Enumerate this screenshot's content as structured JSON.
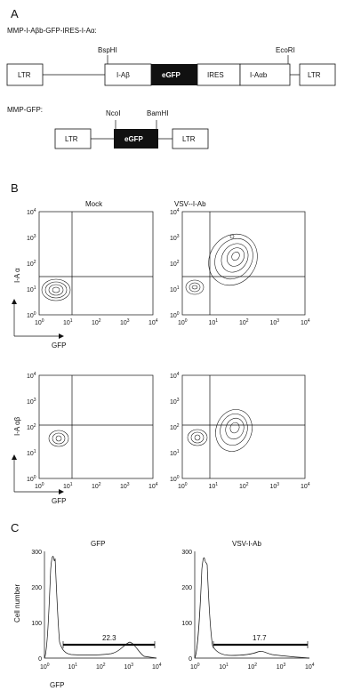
{
  "panel_a": {
    "letter": "A",
    "construct1": {
      "title": "MMP-I-Aβb-GFP-IRES-I-Aα:",
      "segments": [
        "LTR",
        "I-Aβ",
        "eGFP",
        "IRES",
        "I-Aαb",
        "LTR"
      ],
      "sites": [
        "BspHI",
        "EcoRI"
      ]
    },
    "construct2": {
      "title": "MMP-GFP:",
      "segments": [
        "LTR",
        "eGFP",
        "LTR"
      ],
      "sites": [
        "NcoI",
        "BamHI"
      ]
    }
  },
  "panel_b": {
    "letter": "B",
    "col_titles": [
      "Mock",
      "VSV--I-Ab"
    ],
    "row1_ylabel": "I-A α",
    "row2_ylabel": "I-A αβ",
    "xlabel": "GFP",
    "tick_base": "10",
    "tick_exps": [
      "0",
      "1",
      "2",
      "3",
      "4"
    ]
  },
  "panel_c": {
    "letter": "C",
    "titles": [
      "GFP",
      "VSV-I-Ab"
    ],
    "ylabel": "Cell number",
    "xlabel": "GFP",
    "y_ticks": [
      "0",
      "100",
      "200",
      "300"
    ],
    "gate_values": [
      "22.3",
      "17.7"
    ]
  },
  "chart_data": [
    {
      "type": "heatmap",
      "title": "Mock",
      "xlabel": "GFP",
      "ylabel": "I-A α",
      "xscale": "log",
      "yscale": "log",
      "xlim": [
        1,
        10000
      ],
      "ylim": [
        1,
        10000
      ]
    },
    {
      "type": "heatmap",
      "title": "VSV--I-Ab",
      "xlabel": "GFP",
      "ylabel": "I-A α",
      "xscale": "log",
      "yscale": "log",
      "xlim": [
        1,
        10000
      ],
      "ylim": [
        1,
        10000
      ]
    },
    {
      "type": "heatmap",
      "title": "",
      "xlabel": "GFP",
      "ylabel": "I-A αβ",
      "xscale": "log",
      "yscale": "log",
      "xlim": [
        1,
        10000
      ],
      "ylim": [
        1,
        10000
      ]
    },
    {
      "type": "heatmap",
      "title": "",
      "xlabel": "GFP",
      "ylabel": "I-A αβ",
      "xscale": "log",
      "yscale": "log",
      "xlim": [
        1,
        10000
      ],
      "ylim": [
        1,
        10000
      ]
    },
    {
      "type": "line",
      "title": "GFP",
      "xlabel": "GFP",
      "ylabel": "Cell number",
      "xscale": "log",
      "xlim": [
        1,
        10000
      ],
      "ylim": [
        0,
        300
      ],
      "gate_label": "22.3"
    },
    {
      "type": "line",
      "title": "VSV-I-Ab",
      "xlabel": "GFP",
      "ylabel": "",
      "xscale": "log",
      "xlim": [
        1,
        10000
      ],
      "ylim": [
        0,
        300
      ],
      "gate_label": "17.7"
    }
  ]
}
